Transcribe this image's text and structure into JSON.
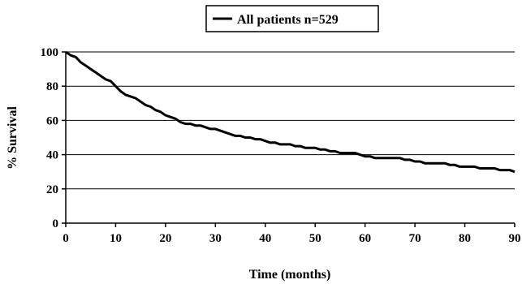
{
  "chart_data": {
    "type": "line",
    "title": "",
    "xlabel": "Time (months)",
    "ylabel": "% Survival",
    "xlim": [
      0,
      90
    ],
    "ylim": [
      0,
      100
    ],
    "x_ticks": [
      "0",
      "10",
      "20",
      "30",
      "40",
      "50",
      "60",
      "70",
      "80",
      "90"
    ],
    "y_ticks": [
      "0",
      "20",
      "40",
      "60",
      "80",
      "100"
    ],
    "grid": "horizontal",
    "legend_position": "top-center",
    "line_color": "#000000",
    "series": [
      {
        "name": "All patients n=529",
        "x": [
          0,
          1,
          2,
          3,
          4,
          5,
          6,
          7,
          8,
          9,
          10,
          11,
          12,
          13,
          14,
          15,
          16,
          17,
          18,
          19,
          20,
          21,
          22,
          23,
          24,
          25,
          26,
          27,
          28,
          29,
          30,
          31,
          32,
          33,
          34,
          35,
          36,
          37,
          38,
          39,
          40,
          41,
          42,
          43,
          44,
          45,
          46,
          47,
          48,
          49,
          50,
          51,
          52,
          53,
          54,
          55,
          56,
          57,
          58,
          59,
          60,
          61,
          62,
          63,
          64,
          65,
          66,
          67,
          68,
          69,
          70,
          71,
          72,
          73,
          74,
          75,
          76,
          77,
          78,
          79,
          80,
          81,
          82,
          83,
          84,
          85,
          86,
          87,
          88,
          89,
          90
        ],
        "y": [
          100,
          98,
          97,
          94,
          92,
          90,
          88,
          86,
          84,
          83,
          80,
          77,
          75,
          74,
          73,
          71,
          69,
          68,
          66,
          65,
          63,
          62,
          61,
          59,
          58,
          58,
          57,
          57,
          56,
          55,
          55,
          54,
          53,
          52,
          51,
          51,
          50,
          50,
          49,
          49,
          48,
          47,
          47,
          46,
          46,
          46,
          45,
          45,
          44,
          44,
          44,
          43,
          43,
          42,
          42,
          41,
          41,
          41,
          41,
          40,
          39,
          39,
          38,
          38,
          38,
          38,
          38,
          38,
          37,
          37,
          36,
          36,
          35,
          35,
          35,
          35,
          35,
          34,
          34,
          33,
          33,
          33,
          33,
          32,
          32,
          32,
          32,
          31,
          31,
          31,
          30
        ]
      }
    ]
  }
}
